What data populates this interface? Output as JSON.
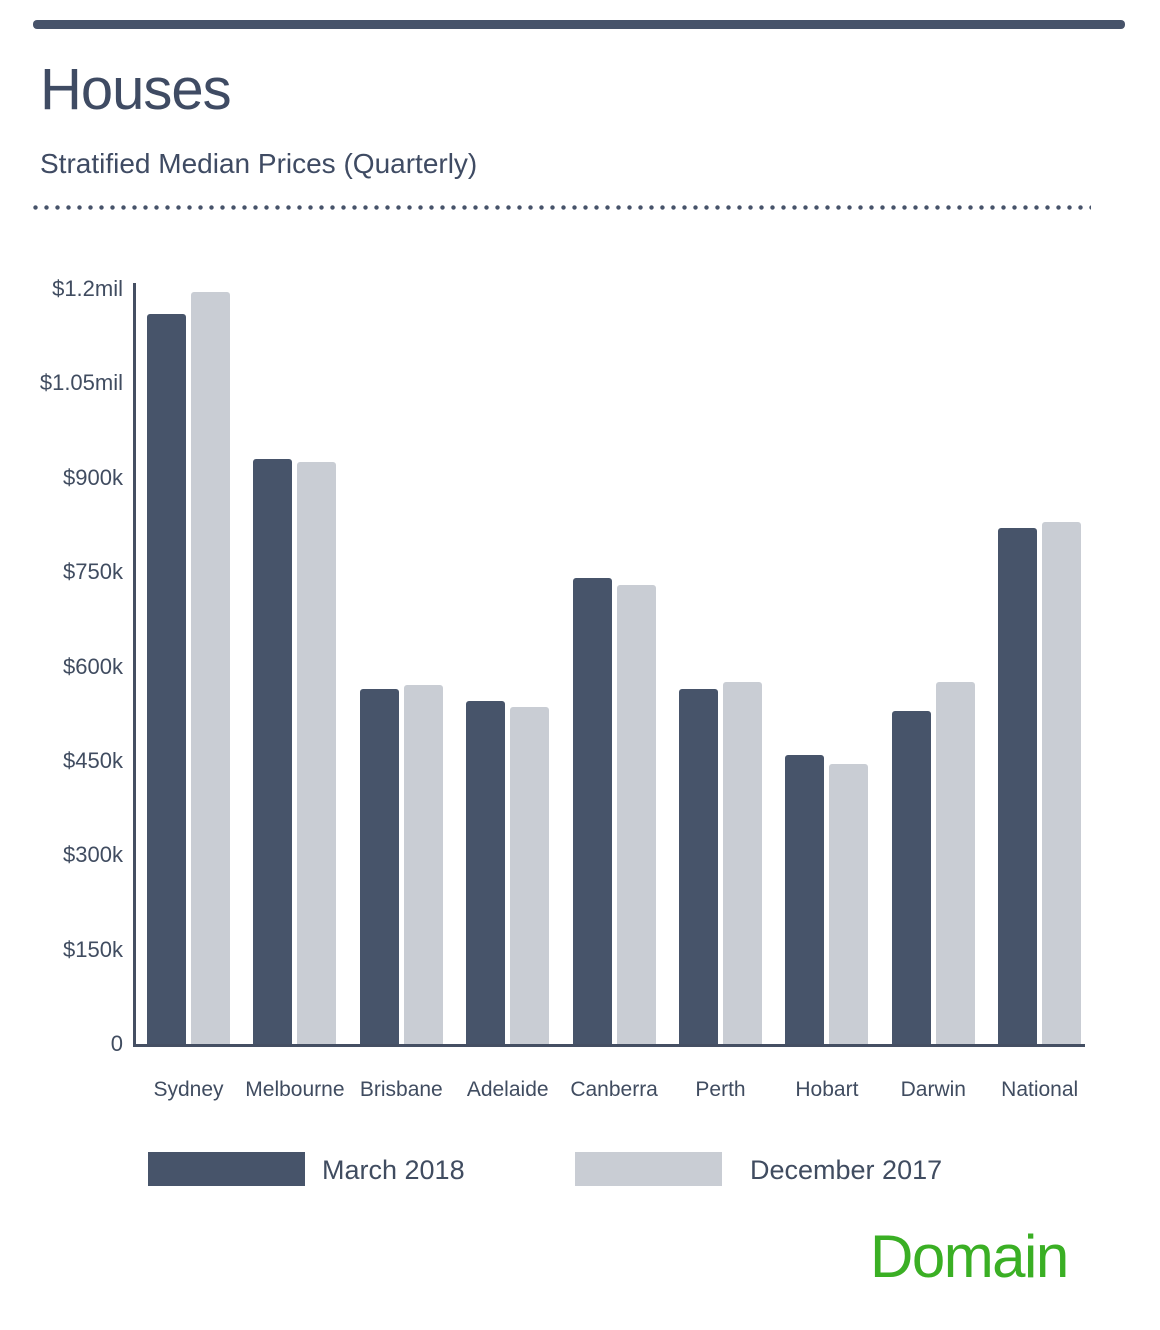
{
  "header": {
    "title": "Houses",
    "subtitle": "Stratified Median Prices (Quarterly)"
  },
  "chart_data": {
    "type": "bar",
    "title": "Houses — Stratified Median Prices (Quarterly)",
    "categories": [
      "Sydney",
      "Melbourne",
      "Brisbane",
      "Adelaide",
      "Canberra",
      "Perth",
      "Hobart",
      "Darwin",
      "National"
    ],
    "series": [
      {
        "name": "March 2018",
        "color": "#47546a",
        "values": [
          1160000,
          930000,
          565000,
          545000,
          740000,
          565000,
          460000,
          530000,
          820000
        ]
      },
      {
        "name": "December 2017",
        "color": "#c9cdd4",
        "values": [
          1195000,
          925000,
          570000,
          535000,
          730000,
          575000,
          445000,
          575000,
          830000
        ]
      }
    ],
    "xlabel": "",
    "ylabel": "",
    "ylim": [
      0,
      1200000
    ],
    "grid": false,
    "legend_position": "bottom",
    "y_ticks": [
      {
        "label": "$1.2mil",
        "value": 1200000
      },
      {
        "label": "$1.05mil",
        "value": 1050000
      },
      {
        "label": "$900k",
        "value": 900000
      },
      {
        "label": "$750k",
        "value": 750000
      },
      {
        "label": "$600k",
        "value": 600000
      },
      {
        "label": "$450k",
        "value": 450000
      },
      {
        "label": "$300k",
        "value": 300000
      },
      {
        "label": "$150k",
        "value": 150000
      },
      {
        "label": "0",
        "value": 0
      }
    ]
  },
  "branding": {
    "logo_text": "Domain",
    "color": "#3aaf24"
  }
}
